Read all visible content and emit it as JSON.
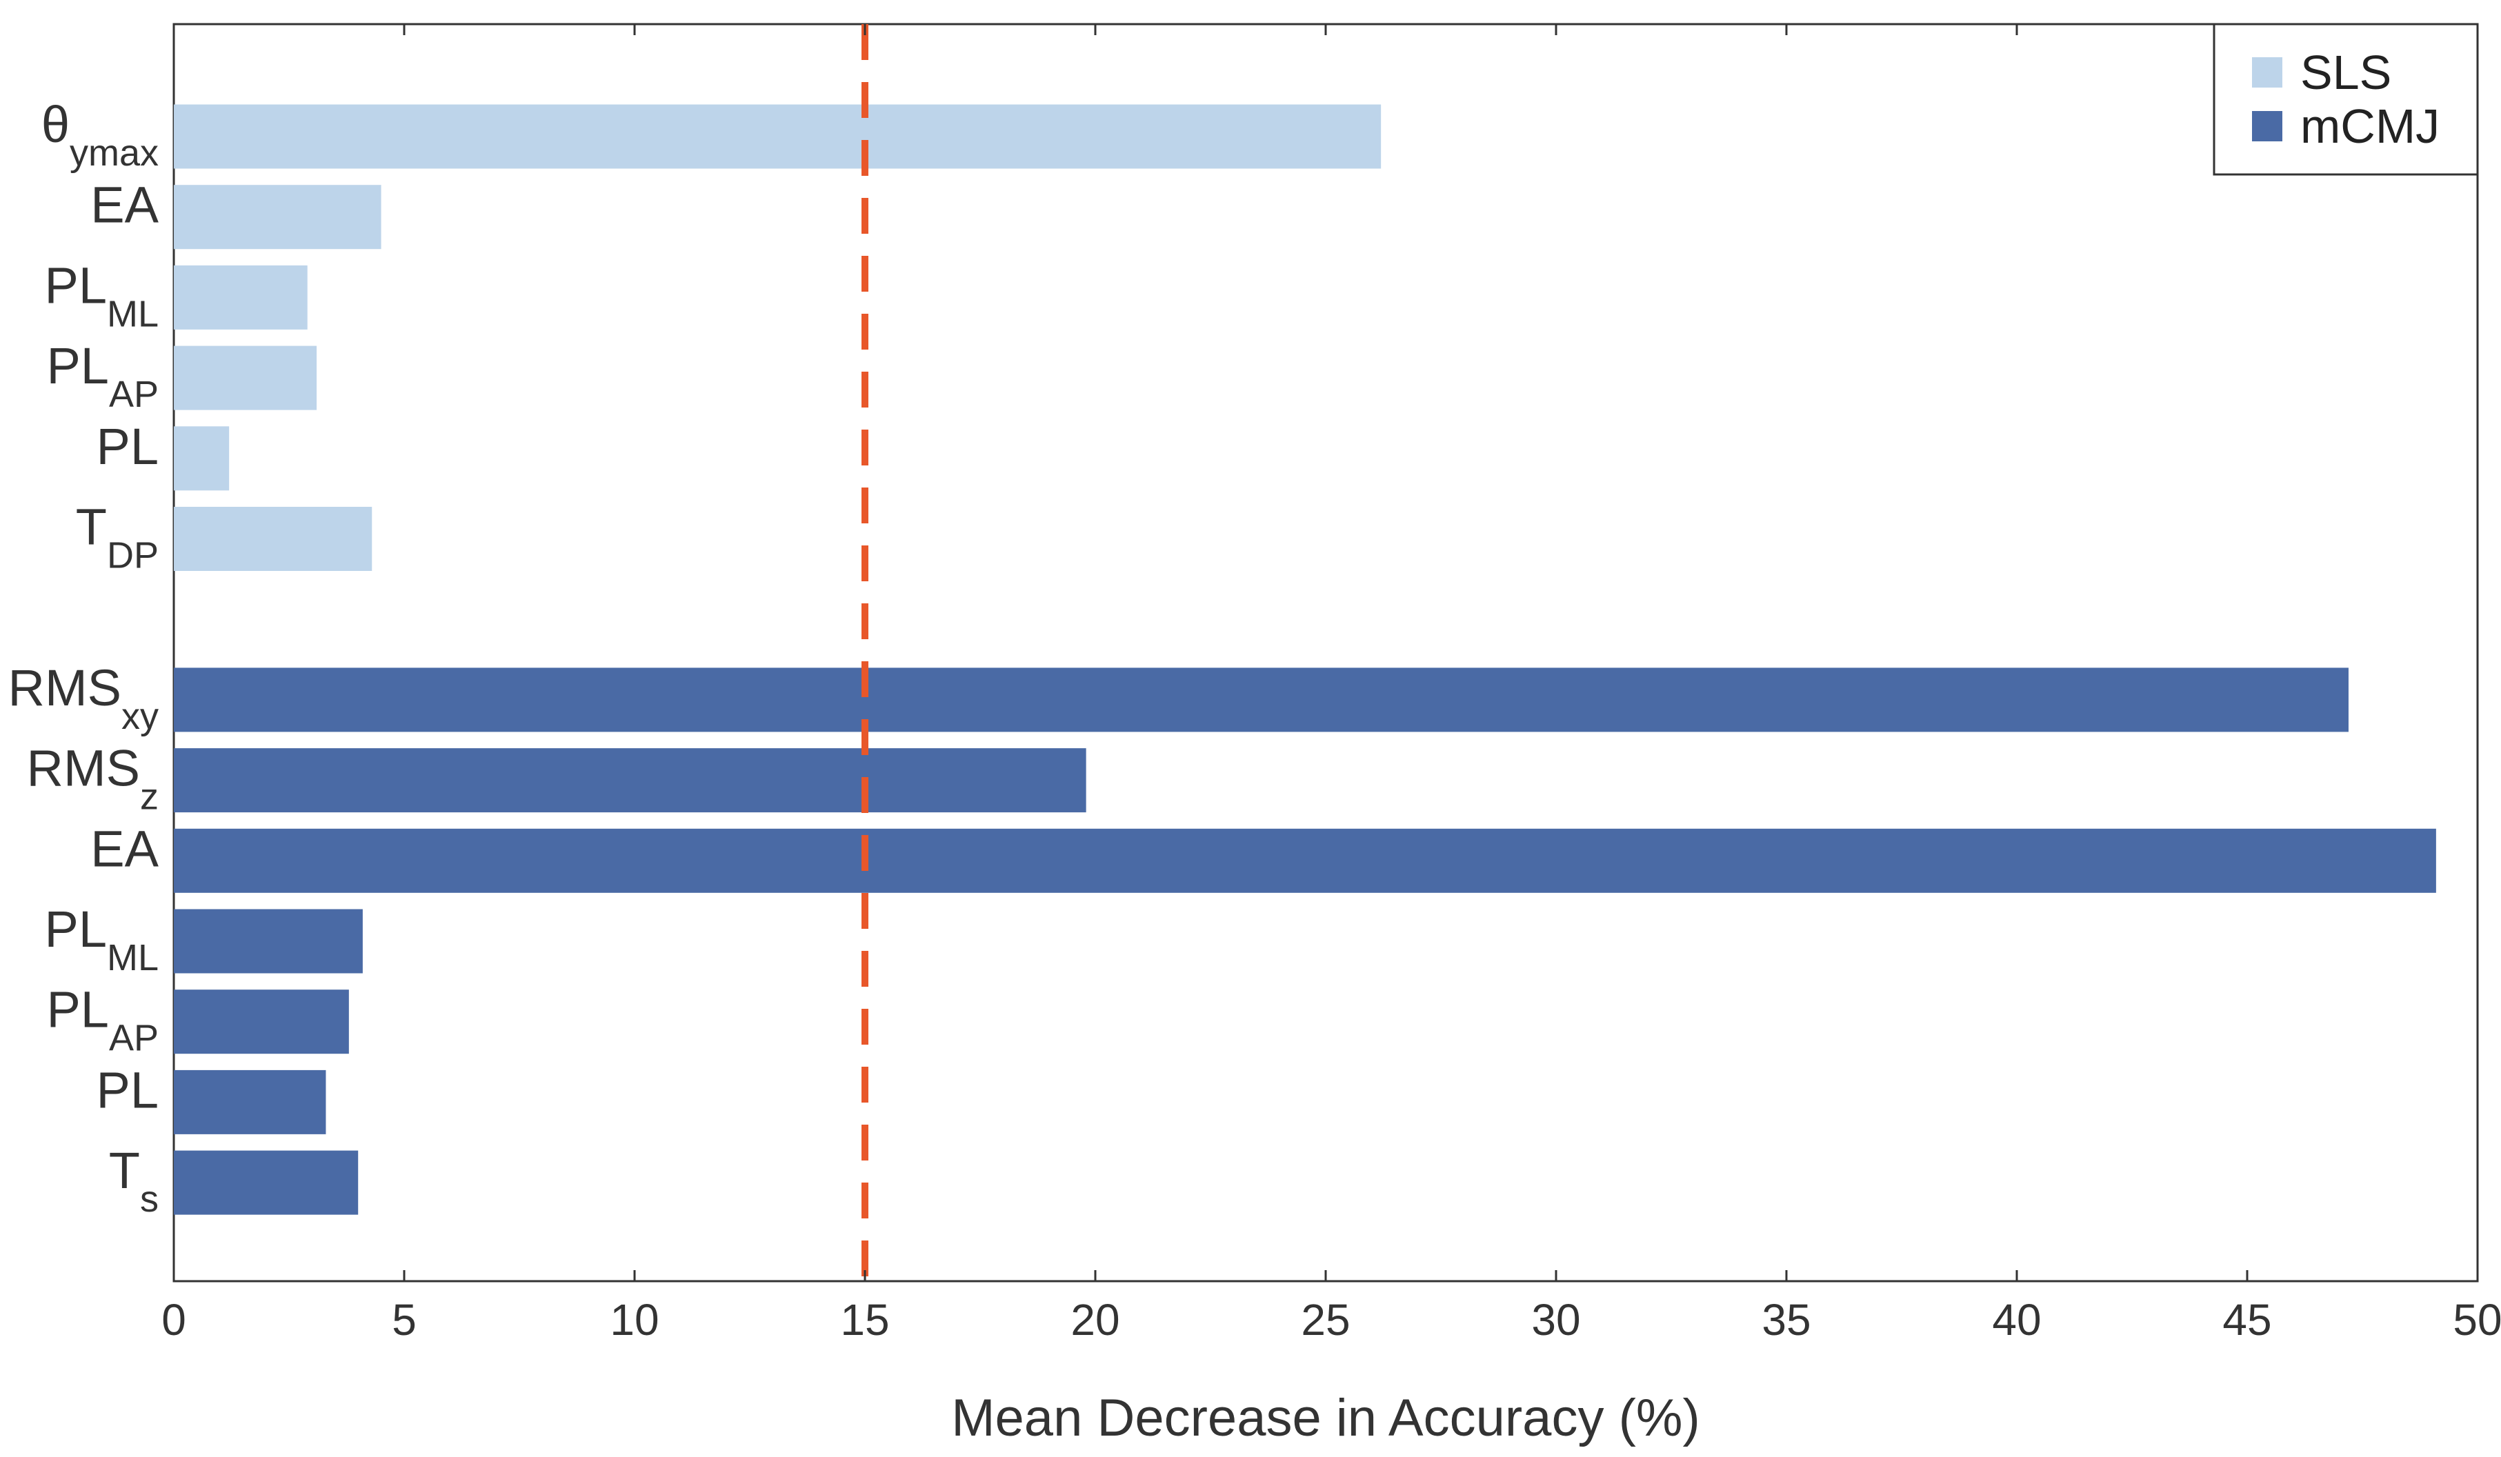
{
  "chart_data": {
    "type": "bar",
    "orientation": "horizontal",
    "title": "",
    "xlabel": "Mean Decrease in Accuracy (%)",
    "ylabel": "",
    "xlim": [
      0,
      50
    ],
    "xticks": [
      0,
      5,
      10,
      15,
      20,
      25,
      30,
      35,
      40,
      45,
      50
    ],
    "grid": false,
    "legend_position": "top-right",
    "reference_line": {
      "x": 15,
      "style": "dashed",
      "color": "#E8572A"
    },
    "series": [
      {
        "name": "SLS",
        "color": "#BDD4EA",
        "categories": [
          {
            "main": "θ",
            "sub": "ymax"
          },
          {
            "main": "EA",
            "sub": ""
          },
          {
            "main": "PL",
            "sub": "ML"
          },
          {
            "main": "PL",
            "sub": "AP"
          },
          {
            "main": "PL",
            "sub": ""
          },
          {
            "main": "T",
            "sub": "DP"
          }
        ],
        "values": [
          26.2,
          4.5,
          2.9,
          3.1,
          1.2,
          4.3
        ]
      },
      {
        "name": "mCMJ",
        "color": "#4A6AA5",
        "categories": [
          {
            "main": "RMS",
            "sub": "xy"
          },
          {
            "main": "RMS",
            "sub": "z"
          },
          {
            "main": "EA",
            "sub": ""
          },
          {
            "main": "PL",
            "sub": "ML"
          },
          {
            "main": "PL",
            "sub": "AP"
          },
          {
            "main": "PL",
            "sub": ""
          },
          {
            "main": "T",
            "sub": "s"
          }
        ],
        "values": [
          47.2,
          19.8,
          49.1,
          4.1,
          3.8,
          3.3,
          4.0
        ]
      }
    ]
  }
}
